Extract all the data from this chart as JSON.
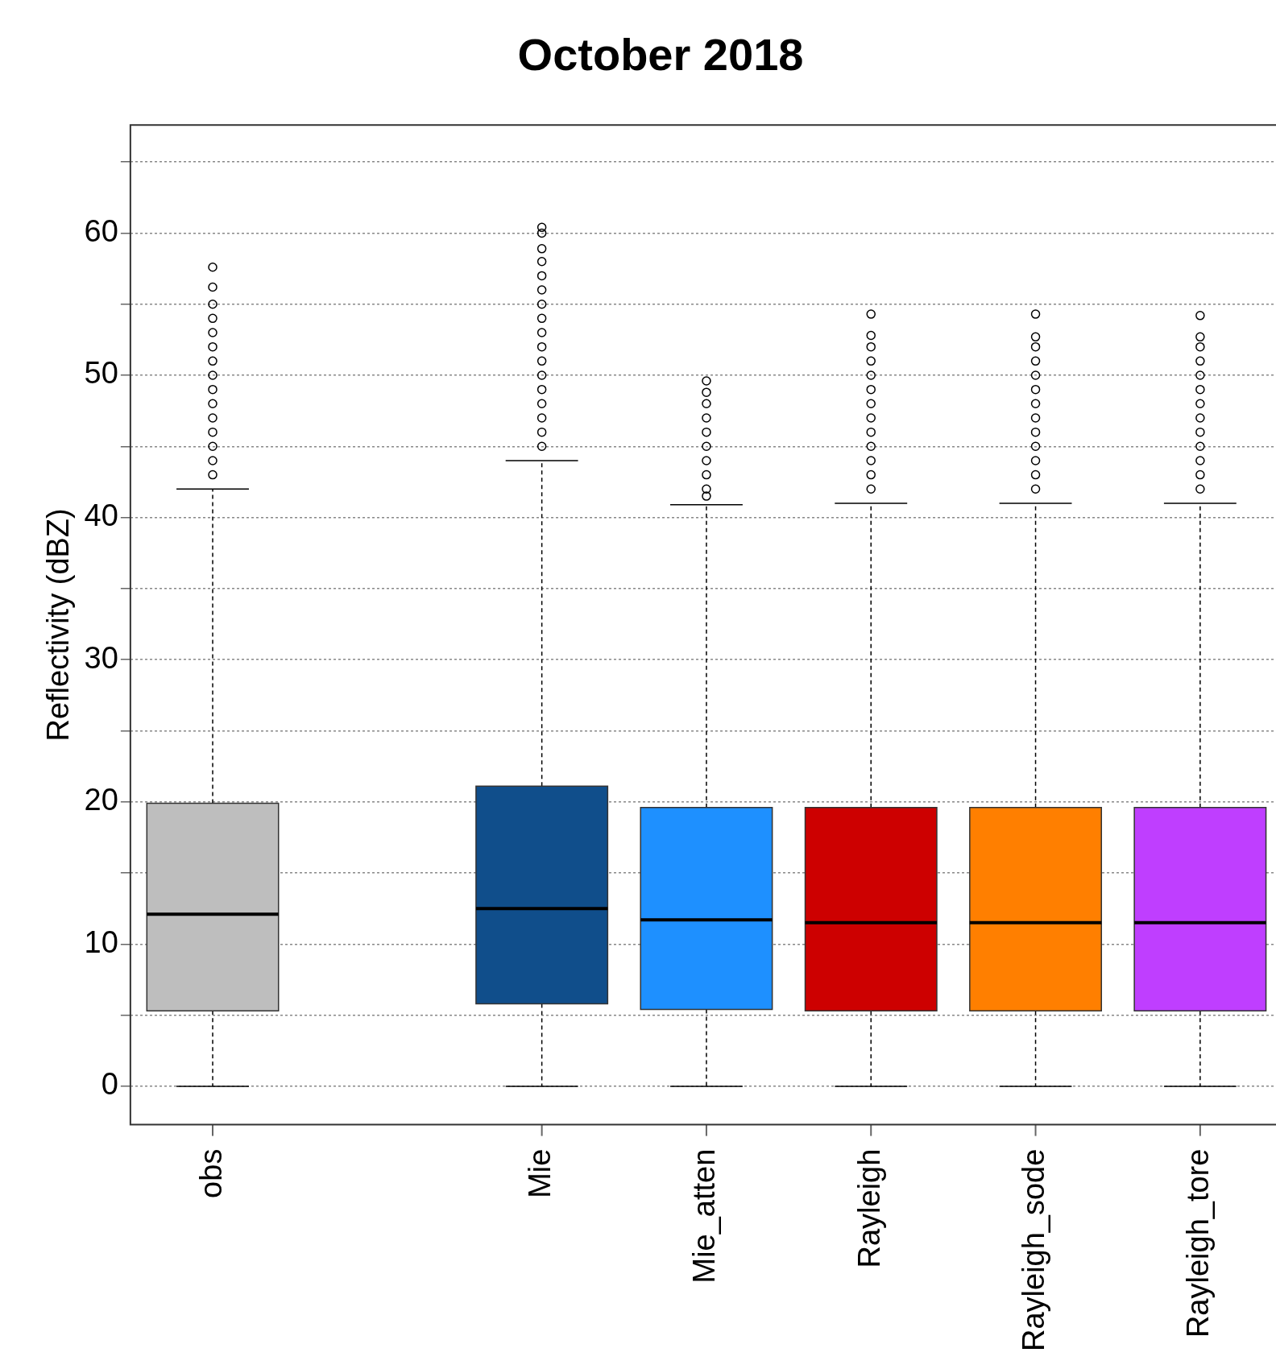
{
  "chart_data": {
    "type": "box",
    "title": "October 2018",
    "ylabel": "Reflectivity (dBZ)",
    "categories": [
      "obs",
      null,
      "Mie",
      "Mie_atten",
      "Rayleigh",
      "Rayleigh_sode",
      "Rayleigh_tore"
    ],
    "colors": [
      "#bebebe",
      null,
      "#104e8b",
      "#1e90ff",
      "#cd0000",
      "#ff7f00",
      "#bf3eff"
    ],
    "boxes": [
      {
        "low": 0,
        "q1": 5.3,
        "median": 12.1,
        "q3": 19.9,
        "high": 42,
        "outliers": [
          43,
          44,
          45,
          46,
          47,
          48,
          49,
          50,
          51,
          52,
          53,
          54,
          55,
          56.2,
          57.6
        ]
      },
      null,
      {
        "low": 0,
        "q1": 5.8,
        "median": 12.5,
        "q3": 21.1,
        "high": 44,
        "outliers": [
          45,
          46,
          47,
          48,
          49,
          50,
          51,
          52,
          53,
          54,
          55,
          56,
          57,
          58,
          58.9,
          60,
          60.4
        ]
      },
      {
        "low": 0,
        "q1": 5.4,
        "median": 11.7,
        "q3": 19.6,
        "high": 40.9,
        "outliers": [
          41.5,
          42,
          43,
          44,
          45,
          46,
          47,
          48,
          48.8,
          49.6
        ]
      },
      {
        "low": 0,
        "q1": 5.3,
        "median": 11.5,
        "q3": 19.6,
        "high": 41,
        "outliers": [
          42,
          43,
          44,
          45,
          46,
          47,
          48,
          49,
          50,
          51,
          52,
          52.8,
          54.3
        ]
      },
      {
        "low": 0,
        "q1": 5.3,
        "median": 11.5,
        "q3": 19.6,
        "high": 41,
        "outliers": [
          42,
          43,
          44,
          45,
          46,
          47,
          48,
          49,
          50,
          51,
          52,
          52.7,
          54.3
        ]
      },
      {
        "low": 0,
        "q1": 5.3,
        "median": 11.5,
        "q3": 19.6,
        "high": 41,
        "outliers": [
          42,
          43,
          44,
          45,
          46,
          47,
          48,
          49,
          50,
          51,
          52,
          52.7,
          54.2
        ]
      }
    ],
    "ylim": [
      -2.7,
      67.6
    ],
    "yticks": [
      0,
      {
        "value": 5,
        "label": null
      },
      10,
      {
        "value": 15,
        "label": null
      },
      20,
      {
        "value": 25,
        "label": null
      },
      30,
      {
        "value": 35,
        "label": null
      },
      40,
      {
        "value": 45,
        "label": null
      },
      50,
      {
        "value": 55,
        "label": null
      },
      60,
      {
        "value": 65,
        "label": null
      }
    ],
    "grid": "y",
    "legend": false
  }
}
